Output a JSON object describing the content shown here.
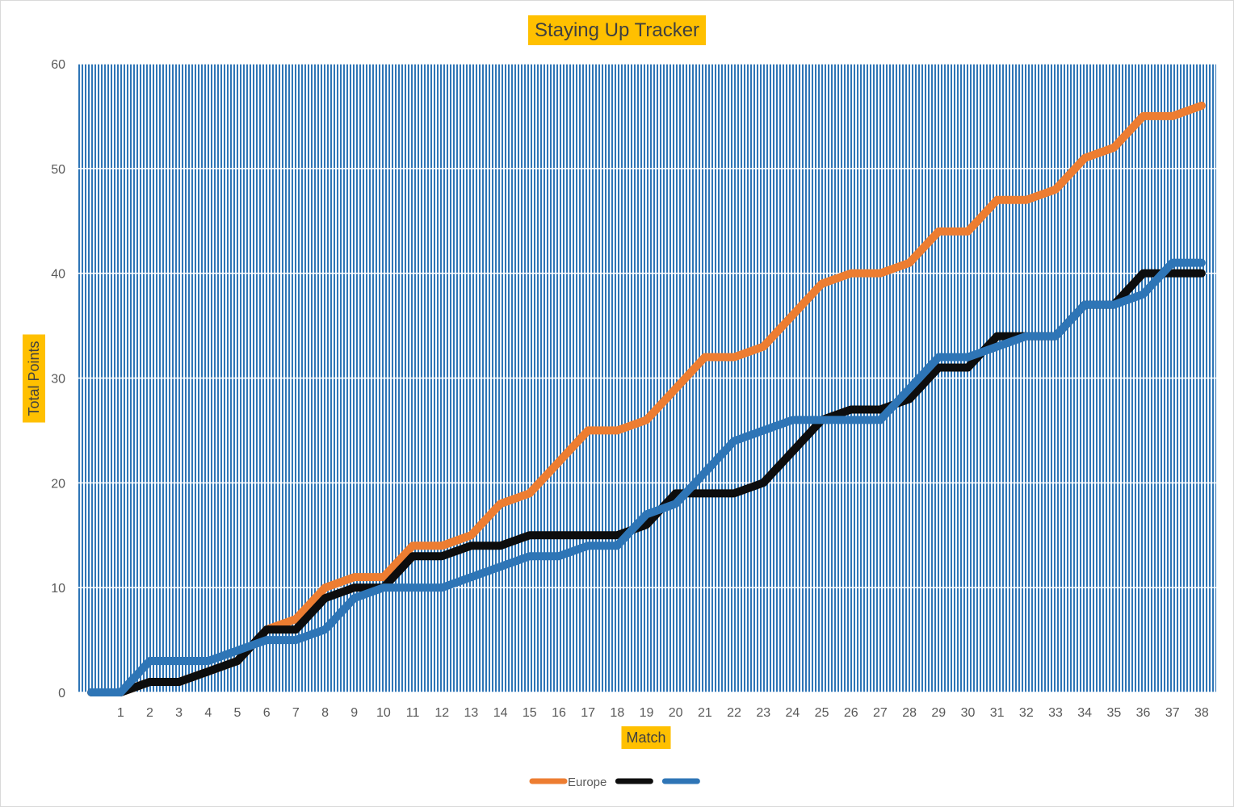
{
  "chart_data": {
    "type": "line",
    "title": "Staying Up Tracker",
    "xlabel": "Match",
    "ylabel": "Total Points",
    "ylim": [
      0,
      60
    ],
    "yticks": [
      0,
      10,
      20,
      30,
      40,
      50,
      60
    ],
    "categories": [
      "1",
      "2",
      "3",
      "4",
      "5",
      "6",
      "7",
      "8",
      "9",
      "10",
      "11",
      "12",
      "13",
      "14",
      "15",
      "16",
      "17",
      "18",
      "19",
      "20",
      "21",
      "22",
      "23",
      "24",
      "25",
      "26",
      "27",
      "28",
      "29",
      "30",
      "31",
      "32",
      "33",
      "34",
      "35",
      "36",
      "37",
      "38"
    ],
    "x": [
      0,
      1,
      2,
      3,
      4,
      5,
      6,
      7,
      8,
      9,
      10,
      11,
      12,
      13,
      14,
      15,
      16,
      17,
      18,
      19,
      20,
      21,
      22,
      23,
      24,
      25,
      26,
      27,
      28,
      29,
      30,
      31,
      32,
      33,
      34,
      35,
      36,
      37,
      38
    ],
    "grid": true,
    "legend_position": "bottom",
    "plot_background": "#2e75b6",
    "title_background": "#ffc000",
    "series": [
      {
        "name": "Europe",
        "color": "#ed7d31",
        "values": [
          0,
          0,
          1,
          1,
          2,
          3,
          6,
          7,
          10,
          11,
          11,
          14,
          14,
          15,
          18,
          19,
          22,
          25,
          25,
          26,
          29,
          32,
          32,
          33,
          36,
          39,
          40,
          40,
          41,
          44,
          44,
          47,
          47,
          48,
          51,
          52,
          55,
          55,
          56
        ]
      },
      {
        "color": "#0d0d0d",
        "values": [
          0,
          0,
          1,
          1,
          2,
          3,
          6,
          6,
          9,
          10,
          10,
          13,
          13,
          14,
          14,
          15,
          15,
          15,
          15,
          16,
          19,
          19,
          19,
          20,
          23,
          26,
          27,
          27,
          28,
          31,
          31,
          34,
          34,
          34,
          37,
          37,
          40,
          40,
          40
        ]
      },
      {
        "color": "#2e75b6",
        "values": [
          0,
          0,
          3,
          3,
          3,
          4,
          5,
          5,
          6,
          9,
          10,
          10,
          10,
          11,
          12,
          13,
          13,
          14,
          14,
          17,
          18,
          21,
          24,
          25,
          26,
          26,
          26,
          26,
          29,
          32,
          32,
          33,
          34,
          34,
          37,
          37,
          38,
          41,
          41
        ]
      }
    ]
  }
}
